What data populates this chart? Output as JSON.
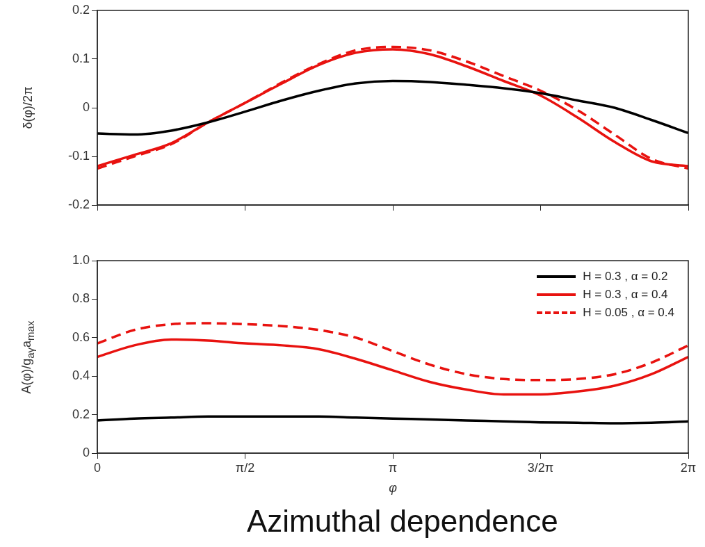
{
  "chart_data": [
    {
      "type": "line",
      "ylabel": "δ(φ)/2π",
      "x": [
        0,
        0.3927,
        0.7854,
        1.1781,
        1.5708,
        1.9635,
        2.3562,
        2.7489,
        3.1416,
        3.5343,
        3.927,
        4.3197,
        4.7124,
        5.1051,
        5.4978,
        5.8905,
        6.2832
      ],
      "xlim": [
        0,
        6.2832
      ],
      "xticks": [
        {
          "value": 0,
          "label": null
        },
        {
          "value": 1.5708,
          "label": null
        },
        {
          "value": 3.1416,
          "label": null
        },
        {
          "value": 4.7124,
          "label": null
        },
        {
          "value": 6.2832,
          "label": null
        }
      ],
      "ylim": [
        -0.2,
        0.2
      ],
      "yticks": [
        -0.2,
        -0.1,
        0,
        0.1,
        0.2
      ],
      "tick_labels": "y",
      "grid": false,
      "legend": false,
      "marker": "none",
      "series": [
        {
          "color": "#000000",
          "values": [
            -0.053,
            -0.055,
            -0.047,
            -0.03,
            -0.008,
            0.015,
            0.035,
            0.05,
            0.055,
            0.053,
            0.047,
            0.04,
            0.03,
            0.015,
            0,
            -0.025,
            -0.052
          ]
        },
        {
          "color": "#e8120f",
          "values": [
            -0.12,
            -0.097,
            -0.073,
            -0.03,
            0.01,
            0.05,
            0.088,
            0.113,
            0.12,
            0.11,
            0.085,
            0.055,
            0.025,
            -0.02,
            -0.07,
            -0.11,
            -0.12
          ]
        },
        {
          "color": "#e8120f",
          "line_style": "dashed",
          "values": [
            -0.125,
            -0.1,
            -0.075,
            -0.03,
            0.01,
            0.052,
            0.09,
            0.118,
            0.125,
            0.118,
            0.095,
            0.065,
            0.035,
            -0.005,
            -0.055,
            -0.105,
            -0.125
          ]
        }
      ]
    },
    {
      "type": "line",
      "xlabel": "φ",
      "ylabel": "A(φ)/g$_{aγ}$a$_{max}$",
      "x": [
        0,
        0.3927,
        0.7854,
        1.1781,
        1.5708,
        1.9635,
        2.3562,
        2.7489,
        3.1416,
        3.5343,
        3.927,
        4.3197,
        4.7124,
        5.1051,
        5.4978,
        5.8905,
        6.2832
      ],
      "xlim": [
        0,
        6.2832
      ],
      "xticks": [
        {
          "value": 0,
          "label": "0"
        },
        {
          "value": 1.5708,
          "label": "π/2"
        },
        {
          "value": 3.1416,
          "label": "π"
        },
        {
          "value": 4.7124,
          "label": "3/2π"
        },
        {
          "value": 6.2832,
          "label": "2π"
        }
      ],
      "ylim": [
        0,
        1
      ],
      "yticks": [
        0,
        0.2,
        0.4,
        0.6,
        0.8,
        {
          "value": 1,
          "label": "1.0"
        }
      ],
      "grid": false,
      "legend": "top right",
      "marker": "none",
      "annotations": [
        "Azimuthal dependence"
      ],
      "series": [
        {
          "name": "H = 0.3 , α = 0.2",
          "color": "#000000",
          "values": [
            0.17,
            0.18,
            0.185,
            0.19,
            0.19,
            0.19,
            0.19,
            0.185,
            0.18,
            0.175,
            0.17,
            0.165,
            0.16,
            0.158,
            0.155,
            0.158,
            0.165
          ]
        },
        {
          "name": "H = 0.3 , α = 0.4",
          "color": "#e8120f",
          "values": [
            0.5,
            0.56,
            0.59,
            0.585,
            0.57,
            0.56,
            0.54,
            0.49,
            0.43,
            0.37,
            0.33,
            0.305,
            0.305,
            0.32,
            0.35,
            0.41,
            0.5
          ]
        },
        {
          "name": "H = 0.05 , α = 0.4",
          "color": "#e8120f",
          "line_style": "dashed",
          "values": [
            0.57,
            0.64,
            0.67,
            0.675,
            0.67,
            0.66,
            0.64,
            0.6,
            0.53,
            0.46,
            0.41,
            0.385,
            0.38,
            0.385,
            0.41,
            0.47,
            0.56
          ]
        }
      ]
    }
  ]
}
